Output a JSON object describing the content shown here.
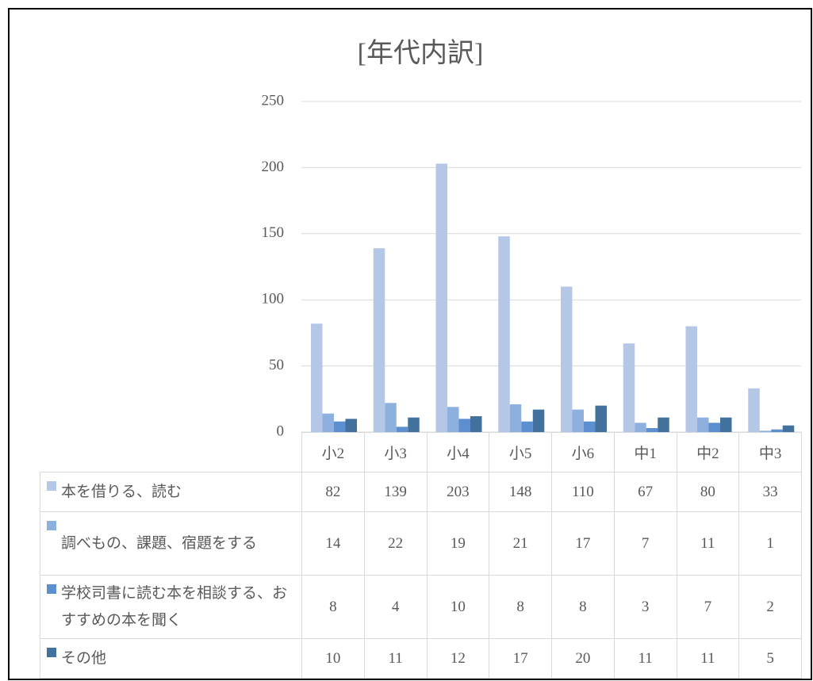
{
  "chart_data": {
    "type": "bar",
    "title": "[年代内訳]",
    "categories": [
      "小2",
      "小3",
      "小4",
      "小5",
      "小6",
      "中1",
      "中2",
      "中3"
    ],
    "series": [
      {
        "name": "本を借りる、読む",
        "color": "#b4c7e7",
        "values": [
          82,
          139,
          203,
          148,
          110,
          67,
          80,
          33
        ]
      },
      {
        "name": "調べもの、課題、宿題をする",
        "color": "#8eb0df",
        "values": [
          14,
          22,
          19,
          21,
          17,
          7,
          11,
          1
        ]
      },
      {
        "name": "学校司書に読む本を相談する、おすすめの本を聞く",
        "color": "#5b8fcf",
        "values": [
          8,
          4,
          10,
          8,
          8,
          3,
          7,
          2
        ]
      },
      {
        "name": "その他",
        "color": "#41719c",
        "values": [
          10,
          11,
          12,
          17,
          20,
          11,
          11,
          5
        ]
      }
    ],
    "ylim": [
      0,
      250
    ],
    "yticks": [
      0,
      50,
      100,
      150,
      200,
      250
    ],
    "grid": true
  }
}
